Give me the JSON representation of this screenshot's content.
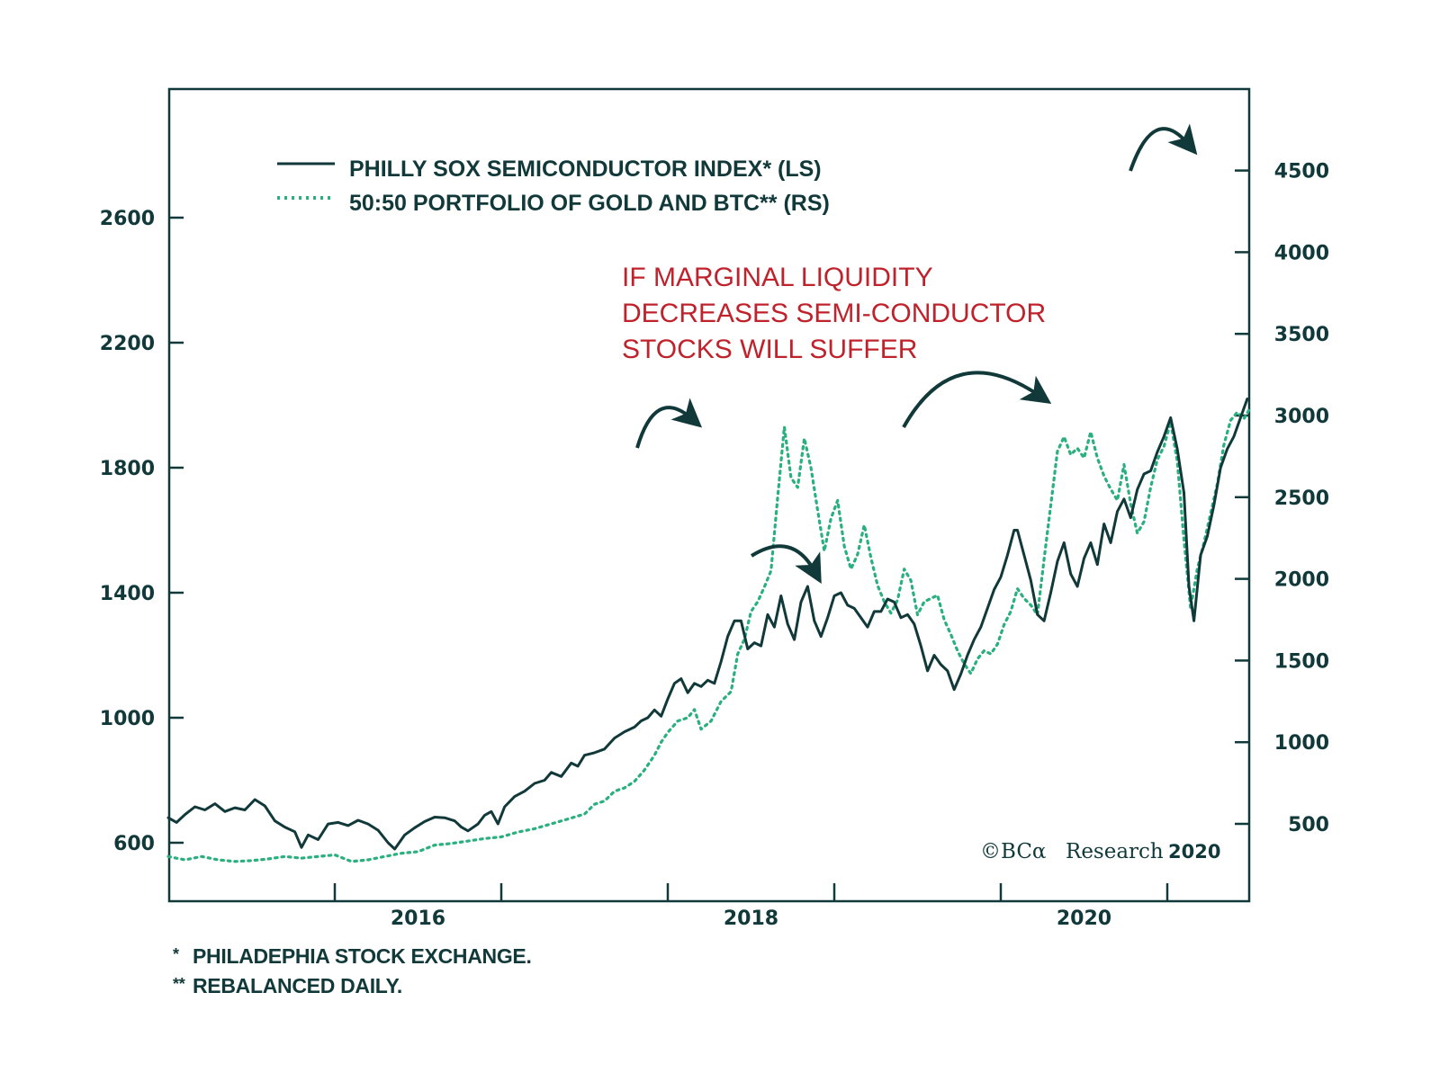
{
  "chart_data": {
    "type": "line",
    "title": "",
    "xlabel": "",
    "x_ticks": [
      "2016",
      "2018",
      "2020"
    ],
    "xlim": [
      2015.0,
      2021.5
    ],
    "y_left": {
      "label": "",
      "ticks": [
        600,
        1000,
        1400,
        1800,
        2200,
        2600
      ],
      "ylim": [
        470,
        3050
      ]
    },
    "y_right": {
      "label": "",
      "ticks": [
        500,
        1000,
        1500,
        2000,
        2500,
        3000,
        3500,
        4000,
        4500
      ],
      "ylim": [
        25,
        5000
      ]
    },
    "grid": false,
    "legend_position": "top-left",
    "series": [
      {
        "name": "PHILLY SOX SEMICONDUCTOR INDEX* (LS)",
        "axis": "left",
        "style": "solid",
        "color": "#12393a",
        "points": [
          [
            2015.0,
            680
          ],
          [
            2015.05,
            665
          ],
          [
            2015.1,
            690
          ],
          [
            2015.16,
            715
          ],
          [
            2015.22,
            705
          ],
          [
            2015.28,
            725
          ],
          [
            2015.34,
            700
          ],
          [
            2015.4,
            712
          ],
          [
            2015.46,
            705
          ],
          [
            2015.52,
            738
          ],
          [
            2015.58,
            718
          ],
          [
            2015.64,
            670
          ],
          [
            2015.7,
            650
          ],
          [
            2015.76,
            635
          ],
          [
            2015.8,
            585
          ],
          [
            2015.84,
            625
          ],
          [
            2015.9,
            610
          ],
          [
            2015.96,
            660
          ],
          [
            2016.02,
            665
          ],
          [
            2016.08,
            655
          ],
          [
            2016.14,
            672
          ],
          [
            2016.2,
            660
          ],
          [
            2016.26,
            640
          ],
          [
            2016.32,
            600
          ],
          [
            2016.36,
            580
          ],
          [
            2016.42,
            625
          ],
          [
            2016.48,
            648
          ],
          [
            2016.54,
            668
          ],
          [
            2016.6,
            682
          ],
          [
            2016.66,
            680
          ],
          [
            2016.72,
            670
          ],
          [
            2016.76,
            650
          ],
          [
            2016.8,
            638
          ],
          [
            2016.86,
            660
          ],
          [
            2016.9,
            688
          ],
          [
            2016.94,
            700
          ],
          [
            2016.98,
            660
          ],
          [
            2017.02,
            715
          ],
          [
            2017.08,
            748
          ],
          [
            2017.14,
            765
          ],
          [
            2017.2,
            790
          ],
          [
            2017.26,
            800
          ],
          [
            2017.3,
            825
          ],
          [
            2017.36,
            812
          ],
          [
            2017.42,
            855
          ],
          [
            2017.46,
            845
          ],
          [
            2017.5,
            880
          ],
          [
            2017.56,
            888
          ],
          [
            2017.62,
            900
          ],
          [
            2017.68,
            935
          ],
          [
            2017.74,
            955
          ],
          [
            2017.8,
            970
          ],
          [
            2017.84,
            990
          ],
          [
            2017.88,
            1000
          ],
          [
            2017.92,
            1025
          ],
          [
            2017.96,
            1005
          ],
          [
            2018.0,
            1060
          ],
          [
            2018.04,
            1110
          ],
          [
            2018.08,
            1125
          ],
          [
            2018.12,
            1080
          ],
          [
            2018.16,
            1110
          ],
          [
            2018.2,
            1100
          ],
          [
            2018.24,
            1120
          ],
          [
            2018.28,
            1110
          ],
          [
            2018.32,
            1180
          ],
          [
            2018.36,
            1260
          ],
          [
            2018.4,
            1310
          ],
          [
            2018.44,
            1310
          ],
          [
            2018.48,
            1220
          ],
          [
            2018.52,
            1240
          ],
          [
            2018.56,
            1230
          ],
          [
            2018.6,
            1330
          ],
          [
            2018.64,
            1290
          ],
          [
            2018.68,
            1390
          ],
          [
            2018.72,
            1300
          ],
          [
            2018.76,
            1250
          ],
          [
            2018.8,
            1370
          ],
          [
            2018.84,
            1420
          ],
          [
            2018.88,
            1310
          ],
          [
            2018.92,
            1260
          ],
          [
            2018.96,
            1320
          ],
          [
            2019.0,
            1390
          ],
          [
            2019.04,
            1400
          ],
          [
            2019.08,
            1360
          ],
          [
            2019.12,
            1350
          ],
          [
            2019.16,
            1320
          ],
          [
            2019.2,
            1290
          ],
          [
            2019.24,
            1340
          ],
          [
            2019.28,
            1340
          ],
          [
            2019.32,
            1380
          ],
          [
            2019.36,
            1370
          ],
          [
            2019.4,
            1320
          ],
          [
            2019.44,
            1330
          ],
          [
            2019.48,
            1300
          ],
          [
            2019.52,
            1230
          ],
          [
            2019.56,
            1150
          ],
          [
            2019.6,
            1200
          ],
          [
            2019.64,
            1170
          ],
          [
            2019.68,
            1150
          ],
          [
            2019.72,
            1090
          ],
          [
            2019.76,
            1140
          ],
          [
            2019.8,
            1200
          ],
          [
            2019.84,
            1250
          ],
          [
            2019.88,
            1290
          ],
          [
            2019.92,
            1350
          ],
          [
            2019.96,
            1410
          ],
          [
            2020.0,
            1450
          ],
          [
            2020.04,
            1520
          ],
          [
            2020.08,
            1600
          ],
          [
            2020.1,
            1600
          ],
          [
            2020.14,
            1520
          ],
          [
            2020.18,
            1440
          ],
          [
            2020.22,
            1330
          ],
          [
            2020.26,
            1310
          ],
          [
            2020.3,
            1400
          ],
          [
            2020.34,
            1500
          ],
          [
            2020.38,
            1560
          ],
          [
            2020.42,
            1460
          ],
          [
            2020.46,
            1420
          ],
          [
            2020.5,
            1510
          ],
          [
            2020.54,
            1560
          ],
          [
            2020.58,
            1490
          ],
          [
            2020.62,
            1620
          ],
          [
            2020.66,
            1560
          ],
          [
            2020.7,
            1660
          ],
          [
            2020.74,
            1700
          ],
          [
            2020.78,
            1640
          ],
          [
            2020.82,
            1730
          ],
          [
            2020.86,
            1780
          ],
          [
            2020.9,
            1790
          ],
          [
            2020.94,
            1850
          ],
          [
            2020.98,
            1900
          ],
          [
            2021.02,
            1960
          ],
          [
            2021.06,
            1860
          ],
          [
            2021.1,
            1720
          ],
          [
            2021.13,
            1420
          ],
          [
            2021.16,
            1310
          ],
          [
            2021.2,
            1520
          ],
          [
            2021.24,
            1580
          ],
          [
            2021.28,
            1680
          ],
          [
            2021.32,
            1800
          ],
          [
            2021.36,
            1860
          ],
          [
            2021.4,
            1900
          ],
          [
            2021.44,
            1960
          ],
          [
            2021.48,
            2020
          ]
        ]
      },
      {
        "name": "50:50 PORTFOLIO OF GOLD AND BTC** (RS)",
        "axis": "right",
        "style": "dotted",
        "color": "#2ab07f",
        "points": [
          [
            2015.0,
            300
          ],
          [
            2015.1,
            280
          ],
          [
            2015.2,
            300
          ],
          [
            2015.3,
            280
          ],
          [
            2015.4,
            270
          ],
          [
            2015.5,
            275
          ],
          [
            2015.6,
            285
          ],
          [
            2015.7,
            300
          ],
          [
            2015.8,
            290
          ],
          [
            2015.9,
            300
          ],
          [
            2016.0,
            310
          ],
          [
            2016.1,
            270
          ],
          [
            2016.2,
            280
          ],
          [
            2016.3,
            300
          ],
          [
            2016.4,
            320
          ],
          [
            2016.5,
            330
          ],
          [
            2016.6,
            370
          ],
          [
            2016.7,
            380
          ],
          [
            2016.8,
            395
          ],
          [
            2016.9,
            410
          ],
          [
            2017.0,
            420
          ],
          [
            2017.1,
            450
          ],
          [
            2017.2,
            470
          ],
          [
            2017.3,
            500
          ],
          [
            2017.4,
            530
          ],
          [
            2017.5,
            560
          ],
          [
            2017.56,
            620
          ],
          [
            2017.62,
            640
          ],
          [
            2017.68,
            700
          ],
          [
            2017.74,
            720
          ],
          [
            2017.8,
            760
          ],
          [
            2017.86,
            830
          ],
          [
            2017.92,
            920
          ],
          [
            2017.96,
            1000
          ],
          [
            2018.0,
            1060
          ],
          [
            2018.06,
            1130
          ],
          [
            2018.12,
            1150
          ],
          [
            2018.16,
            1200
          ],
          [
            2018.2,
            1080
          ],
          [
            2018.26,
            1130
          ],
          [
            2018.32,
            1250
          ],
          [
            2018.38,
            1310
          ],
          [
            2018.42,
            1540
          ],
          [
            2018.46,
            1630
          ],
          [
            2018.5,
            1800
          ],
          [
            2018.54,
            1860
          ],
          [
            2018.58,
            1950
          ],
          [
            2018.62,
            2050
          ],
          [
            2018.66,
            2500
          ],
          [
            2018.7,
            2930
          ],
          [
            2018.74,
            2620
          ],
          [
            2018.78,
            2560
          ],
          [
            2018.82,
            2860
          ],
          [
            2018.86,
            2680
          ],
          [
            2018.9,
            2420
          ],
          [
            2018.94,
            2170
          ],
          [
            2018.98,
            2370
          ],
          [
            2019.02,
            2480
          ],
          [
            2019.06,
            2200
          ],
          [
            2019.1,
            2060
          ],
          [
            2019.14,
            2150
          ],
          [
            2019.18,
            2330
          ],
          [
            2019.22,
            2130
          ],
          [
            2019.26,
            1960
          ],
          [
            2019.3,
            1860
          ],
          [
            2019.34,
            1790
          ],
          [
            2019.38,
            1870
          ],
          [
            2019.42,
            2060
          ],
          [
            2019.46,
            1990
          ],
          [
            2019.5,
            1780
          ],
          [
            2019.54,
            1860
          ],
          [
            2019.58,
            1880
          ],
          [
            2019.62,
            1900
          ],
          [
            2019.66,
            1750
          ],
          [
            2019.7,
            1660
          ],
          [
            2019.74,
            1560
          ],
          [
            2019.78,
            1480
          ],
          [
            2019.82,
            1420
          ],
          [
            2019.86,
            1510
          ],
          [
            2019.9,
            1560
          ],
          [
            2019.94,
            1540
          ],
          [
            2019.98,
            1600
          ],
          [
            2020.02,
            1720
          ],
          [
            2020.06,
            1800
          ],
          [
            2020.1,
            1940
          ],
          [
            2020.14,
            1880
          ],
          [
            2020.18,
            1840
          ],
          [
            2020.22,
            1780
          ],
          [
            2020.26,
            2120
          ],
          [
            2020.3,
            2450
          ],
          [
            2020.34,
            2780
          ],
          [
            2020.38,
            2870
          ],
          [
            2020.42,
            2760
          ],
          [
            2020.46,
            2800
          ],
          [
            2020.5,
            2740
          ],
          [
            2020.54,
            2900
          ],
          [
            2020.58,
            2740
          ],
          [
            2020.62,
            2630
          ],
          [
            2020.66,
            2550
          ],
          [
            2020.7,
            2480
          ],
          [
            2020.74,
            2700
          ],
          [
            2020.78,
            2460
          ],
          [
            2020.82,
            2280
          ],
          [
            2020.86,
            2350
          ],
          [
            2020.9,
            2560
          ],
          [
            2020.94,
            2730
          ],
          [
            2020.98,
            2810
          ],
          [
            2021.02,
            2960
          ],
          [
            2021.06,
            2720
          ],
          [
            2021.1,
            2240
          ],
          [
            2021.14,
            1820
          ],
          [
            2021.18,
            2060
          ],
          [
            2021.22,
            2220
          ],
          [
            2021.26,
            2400
          ],
          [
            2021.3,
            2580
          ],
          [
            2021.34,
            2820
          ],
          [
            2021.38,
            2970
          ],
          [
            2021.42,
            3020
          ],
          [
            2021.46,
            2980
          ],
          [
            2021.5,
            3050
          ]
        ]
      }
    ],
    "annotations": [
      {
        "text_lines": [
          "IF MARGINAL LIQUIDITY",
          "DECREASES SEMI-CONDUCTOR",
          "STOCKS WILL SUFFER"
        ],
        "color": "#c0222c"
      }
    ],
    "source": "© BCA Research 2020"
  },
  "legend": {
    "items": [
      {
        "label": "PHILLY SOX SEMICONDUCTOR INDEX* (LS)",
        "style": "solid",
        "color": "#12393a"
      },
      {
        "label": "50:50 PORTFOLIO OF GOLD AND BTC** (RS)",
        "style": "dotted",
        "color": "#2ab07f"
      }
    ]
  },
  "annotation": {
    "line1": "IF MARGINAL LIQUIDITY",
    "line2": "DECREASES SEMI-CONDUCTOR",
    "line3": "STOCKS WILL SUFFER"
  },
  "credit": {
    "copyright": "©",
    "brand": "BCα",
    "word": "Research",
    "year": "2020"
  },
  "footnotes": [
    {
      "mark": "*",
      "text": "PHILADEPHIA STOCK EXCHANGE."
    },
    {
      "mark": "**",
      "text": "REBALANCED DAILY."
    }
  ],
  "colors": {
    "axis": "#12393a",
    "sox_line": "#12393a",
    "btc_gold_line": "#2ab07f",
    "annotation": "#c0222c"
  }
}
